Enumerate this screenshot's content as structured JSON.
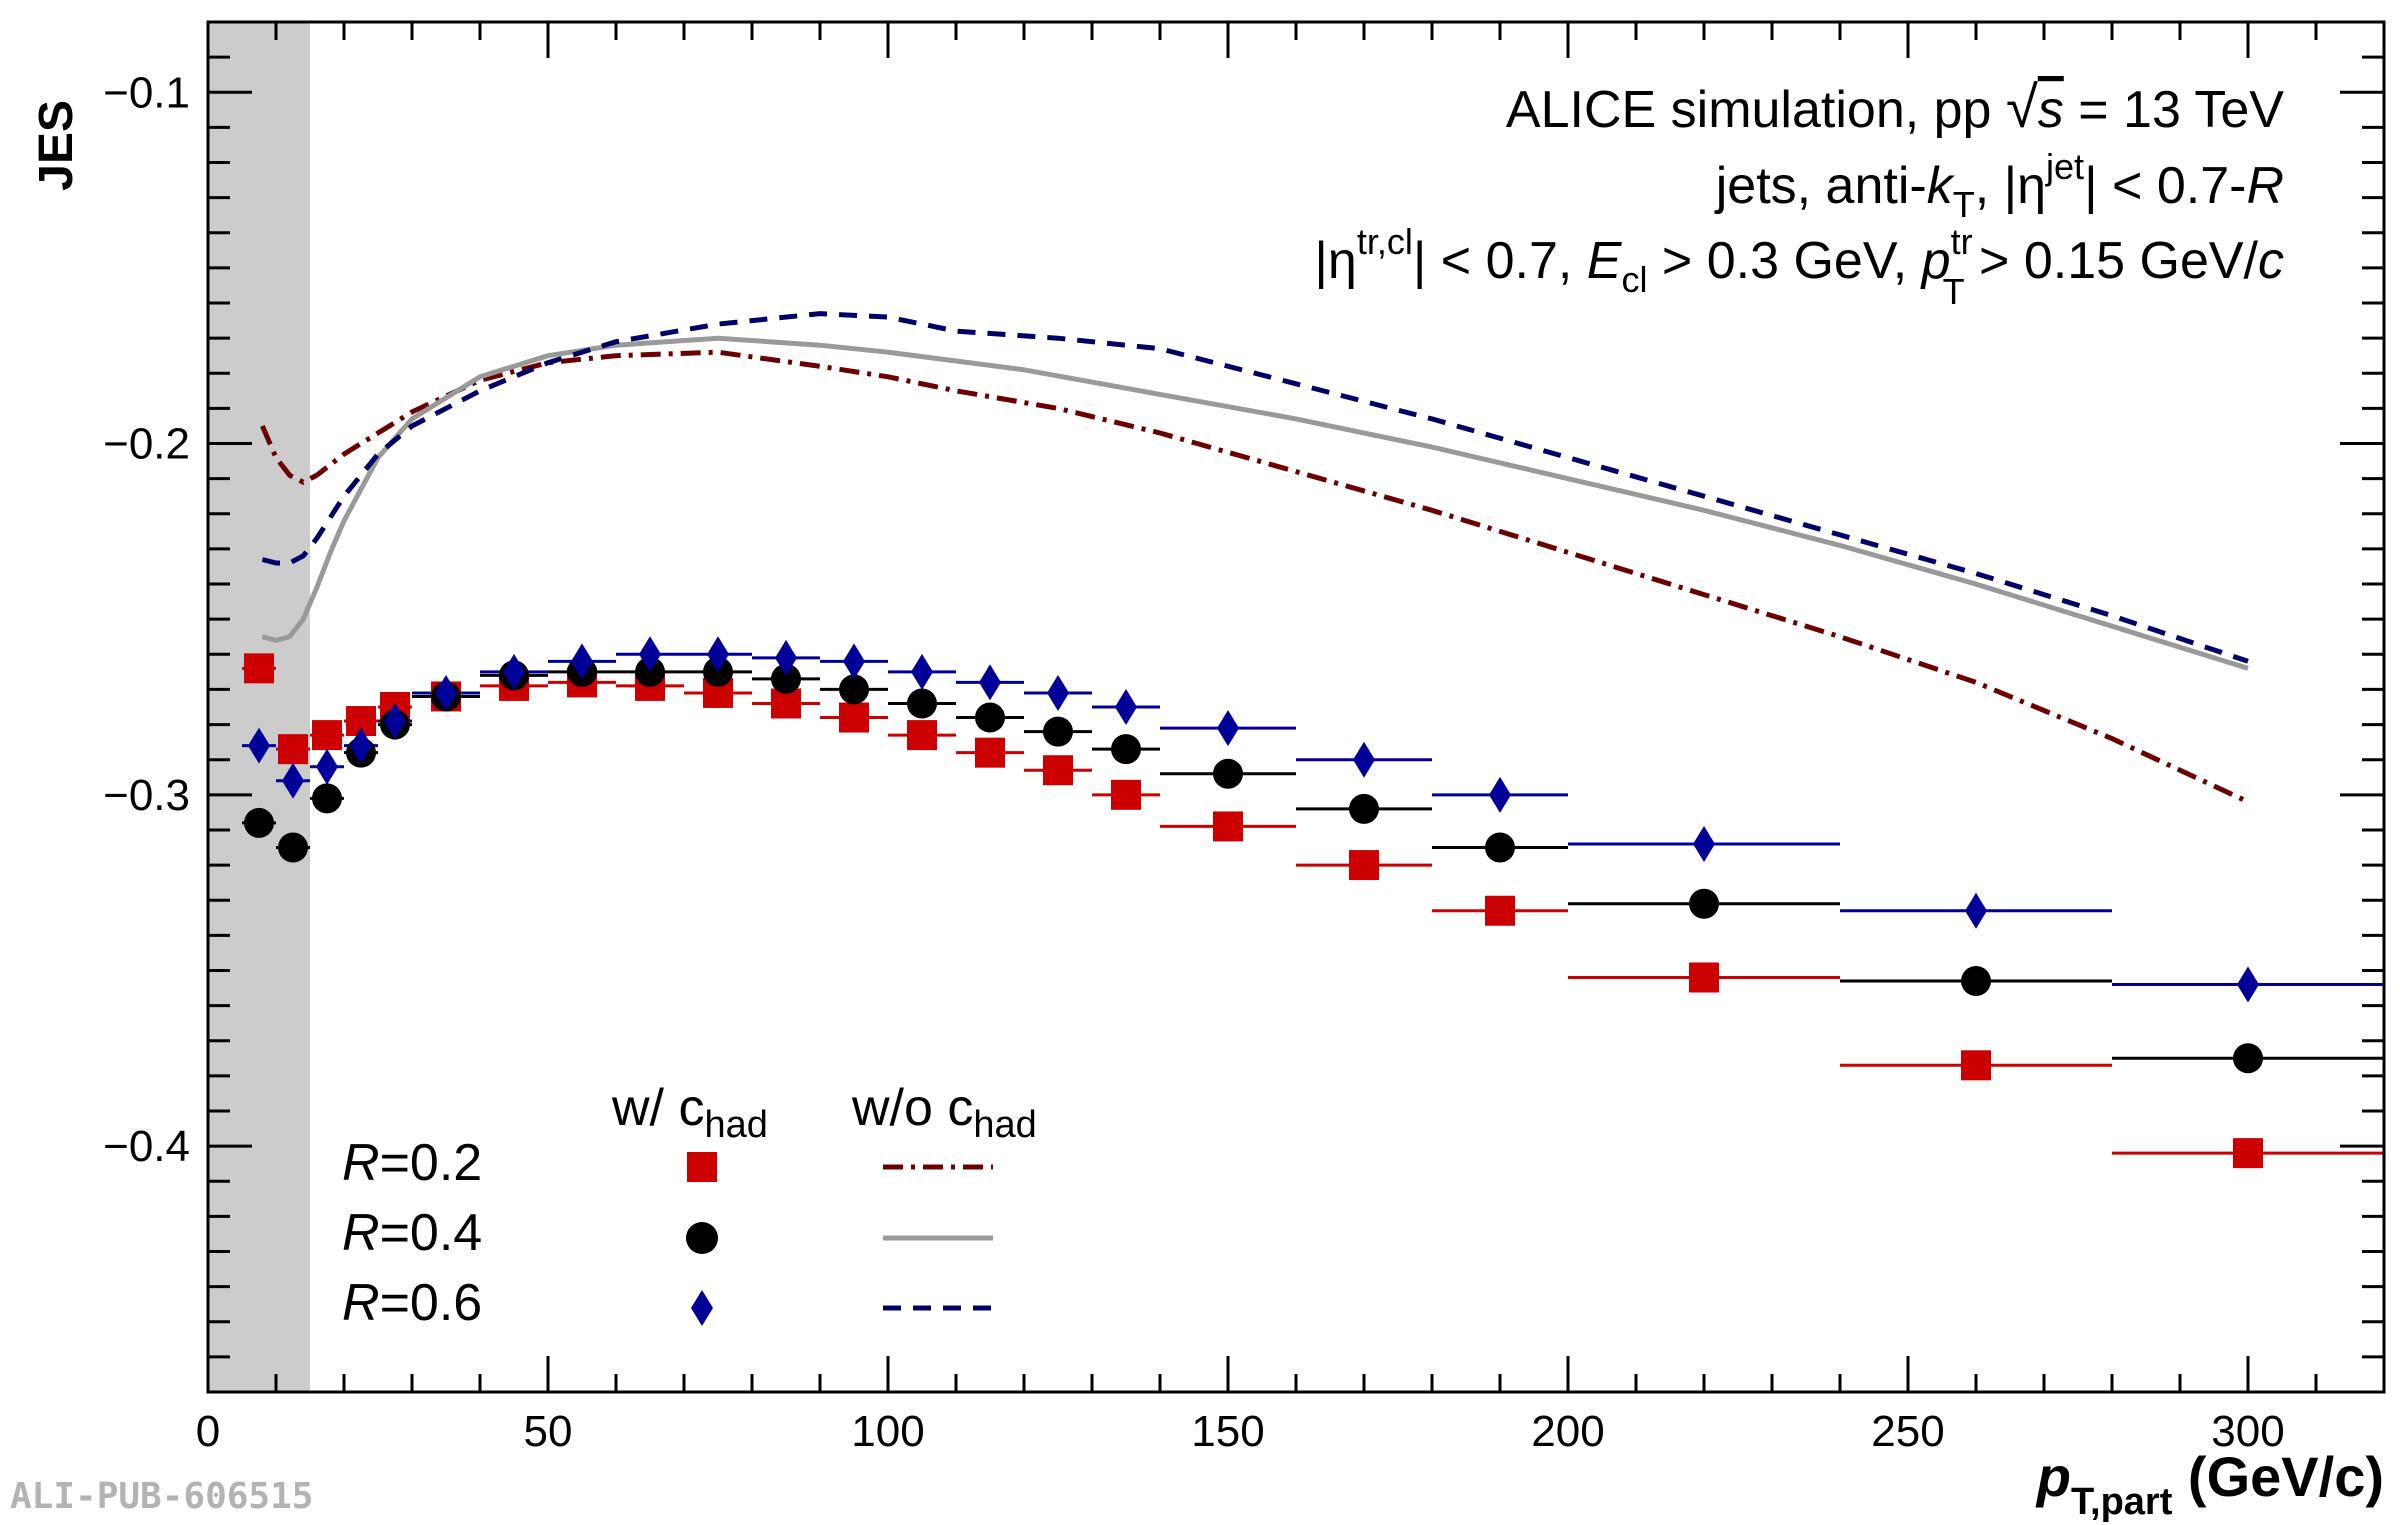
{
  "watermark": "ALI-PUB-606515",
  "colors": {
    "r02": "#cc0000",
    "r04": "#000000",
    "r06": "#000099",
    "r02_line": "#6b0000",
    "r04_line": "#999999",
    "r06_line": "#000066",
    "excluded_band": "#cccccc"
  },
  "annotation": {
    "line1": "ALICE simulation, pp √s = 13 TeV",
    "line2": "jets, anti-kT, |ηjet| < 0.7-R",
    "line3": "|ηtr,cl| < 0.7, Ecl > 0.3 GeV, pTtr > 0.15 GeV/c"
  },
  "legend": {
    "header_with": "w/ chad",
    "header_without": "w/o chad",
    "entries": [
      "R=0.2",
      "R=0.4",
      "R=0.6"
    ]
  },
  "chart_data": {
    "type": "scatter",
    "ylabel": "JES",
    "xlabel": "pT,part (GeV/c)",
    "xlim": [
      0,
      320
    ],
    "ylim": [
      -0.47,
      -0.08
    ],
    "x_ticks": [
      0,
      50,
      100,
      150,
      200,
      250,
      300
    ],
    "y_ticks": [
      -0.1,
      -0.2,
      -0.3,
      -0.4
    ],
    "x_tick_labels": [
      "0",
      "50",
      "100",
      "150",
      "200",
      "250",
      "300"
    ],
    "y_tick_labels": [
      "−0.1",
      "−0.2",
      "−0.3",
      "−0.4"
    ],
    "excluded_region": [
      0,
      15
    ],
    "grid": false,
    "bins_low": [
      5,
      10,
      15,
      20,
      25,
      30,
      40,
      50,
      60,
      70,
      80,
      90,
      100,
      110,
      120,
      130,
      140,
      160,
      180,
      200,
      240,
      280
    ],
    "bins_high": [
      10,
      15,
      20,
      25,
      30,
      40,
      50,
      60,
      70,
      80,
      90,
      100,
      110,
      120,
      130,
      140,
      160,
      180,
      200,
      240,
      280,
      320
    ],
    "x": [
      7.5,
      12.5,
      17.5,
      22.5,
      27.5,
      35,
      45,
      55,
      65,
      75,
      85,
      95,
      105,
      115,
      125,
      135,
      150,
      170,
      190,
      220,
      260,
      300
    ],
    "series": [
      {
        "name": "R=0.2",
        "marker": "square",
        "values": [
          -0.264,
          -0.287,
          -0.283,
          -0.279,
          -0.275,
          -0.272,
          -0.269,
          -0.268,
          -0.269,
          -0.271,
          -0.274,
          -0.278,
          -0.283,
          -0.288,
          -0.293,
          -0.3,
          -0.309,
          -0.32,
          -0.333,
          -0.352,
          -0.377,
          -0.402
        ]
      },
      {
        "name": "R=0.4",
        "marker": "circle",
        "values": [
          -0.308,
          -0.315,
          -0.301,
          -0.288,
          -0.28,
          -0.272,
          -0.266,
          -0.265,
          -0.265,
          -0.265,
          -0.267,
          -0.27,
          -0.274,
          -0.278,
          -0.282,
          -0.287,
          -0.294,
          -0.304,
          -0.315,
          -0.331,
          -0.353,
          -0.375
        ]
      },
      {
        "name": "R=0.6",
        "marker": "diamond",
        "values": [
          -0.286,
          -0.296,
          -0.292,
          -0.286,
          -0.279,
          -0.271,
          -0.265,
          -0.262,
          -0.26,
          -0.26,
          -0.261,
          -0.262,
          -0.265,
          -0.268,
          -0.271,
          -0.275,
          -0.281,
          -0.29,
          -0.3,
          -0.314,
          -0.333,
          -0.354
        ]
      }
    ],
    "curves": [
      {
        "name": "R=0.2",
        "style": "dashdot",
        "x": [
          8,
          10,
          12,
          14,
          16,
          20,
          25,
          30,
          40,
          50,
          60,
          75,
          90,
          100,
          110,
          125,
          140,
          160,
          180,
          200,
          220,
          240,
          260,
          280,
          300
        ],
        "y": [
          -0.195,
          -0.204,
          -0.209,
          -0.211,
          -0.209,
          -0.203,
          -0.197,
          -0.191,
          -0.182,
          -0.177,
          -0.175,
          -0.174,
          -0.178,
          -0.181,
          -0.185,
          -0.19,
          -0.197,
          -0.208,
          -0.219,
          -0.231,
          -0.243,
          -0.255,
          -0.268,
          -0.284,
          -0.302
        ]
      },
      {
        "name": "R=0.4",
        "style": "solid",
        "x": [
          8,
          10,
          12,
          14,
          16,
          18,
          20,
          25,
          30,
          40,
          50,
          60,
          75,
          90,
          100,
          120,
          140,
          160,
          180,
          200,
          220,
          240,
          260,
          280,
          300
        ],
        "y": [
          -0.255,
          -0.256,
          -0.255,
          -0.25,
          -0.241,
          -0.231,
          -0.222,
          -0.204,
          -0.193,
          -0.181,
          -0.175,
          -0.172,
          -0.17,
          -0.172,
          -0.174,
          -0.179,
          -0.186,
          -0.193,
          -0.201,
          -0.21,
          -0.219,
          -0.229,
          -0.24,
          -0.252,
          -0.264
        ]
      },
      {
        "name": "R=0.6",
        "style": "dashed",
        "x": [
          8,
          10,
          12,
          14,
          16,
          18,
          20,
          25,
          30,
          40,
          50,
          60,
          75,
          90,
          100,
          110,
          125,
          140,
          160,
          180,
          200,
          220,
          240,
          260,
          280,
          300
        ],
        "y": [
          -0.233,
          -0.234,
          -0.234,
          -0.232,
          -0.227,
          -0.221,
          -0.215,
          -0.203,
          -0.195,
          -0.185,
          -0.177,
          -0.171,
          -0.166,
          -0.163,
          -0.164,
          -0.168,
          -0.17,
          -0.173,
          -0.183,
          -0.193,
          -0.204,
          -0.215,
          -0.226,
          -0.237,
          -0.249,
          -0.262
        ]
      }
    ]
  }
}
